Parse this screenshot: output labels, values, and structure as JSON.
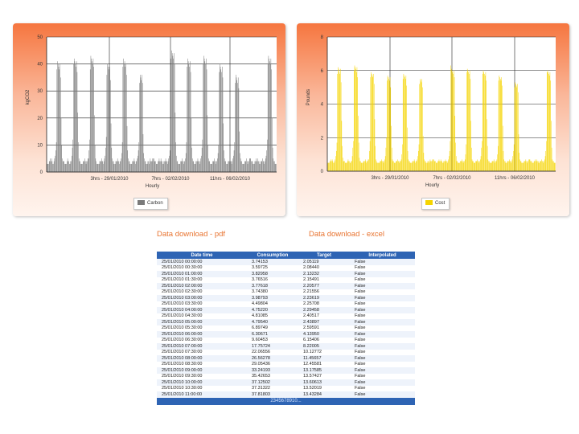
{
  "charts": [
    {
      "name": "carbon",
      "ylabel": "kgCO2",
      "xlabel": "Hourly",
      "color": "#7a7a7a",
      "legend_label": "Carbon",
      "x_ticks": [
        "3hrs - 29/01/2010",
        "7hrs - 02/02/2010",
        "11hrs - 06/02/2010"
      ],
      "y_ticks": [
        "0",
        "10",
        "20",
        "30",
        "40",
        "50"
      ]
    },
    {
      "name": "cost",
      "ylabel": "Pounds",
      "xlabel": "Hourly",
      "color": "#f5d400",
      "legend_label": "Cost",
      "x_ticks": [
        "3hrs - 29/01/2010",
        "7hrs - 02/02/2010",
        "11hrs - 06/02/2010"
      ],
      "y_ticks": [
        "0",
        "2",
        "4",
        "6",
        "8"
      ]
    }
  ],
  "chart_data": [
    {
      "type": "bar",
      "xlabel": "Hourly",
      "ylabel": "kgCO2",
      "ylim": [
        0,
        50
      ],
      "x_range": [
        "25/01/2010",
        "07/02/2010"
      ],
      "series": [
        {
          "name": "Carbon",
          "values": [
            3,
            3,
            3,
            3,
            4,
            4,
            5,
            4,
            5,
            4,
            3,
            3,
            4,
            5,
            6,
            8,
            11,
            38,
            41,
            40,
            39,
            38,
            40,
            35,
            20,
            10,
            5,
            4,
            4,
            4,
            3,
            3,
            3,
            3,
            4,
            5,
            4,
            4,
            3,
            3,
            4,
            4,
            6,
            9,
            12,
            40,
            42,
            41,
            40,
            39,
            41,
            37,
            22,
            11,
            5,
            4,
            4,
            3,
            3,
            3,
            3,
            4,
            4,
            4,
            5,
            4,
            3,
            4,
            4,
            5,
            5,
            8,
            12,
            38,
            43,
            42,
            41,
            40,
            42,
            39,
            21,
            10,
            5,
            4,
            3,
            3,
            3,
            3,
            3,
            4,
            4,
            4,
            5,
            4,
            4,
            3,
            4,
            5,
            6,
            9,
            13,
            36,
            40,
            39,
            38,
            37,
            39,
            34,
            18,
            9,
            5,
            4,
            4,
            3,
            3,
            3,
            4,
            4,
            4,
            5,
            4,
            4,
            3,
            4,
            4,
            5,
            7,
            11,
            39,
            42,
            40,
            41,
            39,
            40,
            36,
            17,
            8,
            5,
            4,
            4,
            3,
            3,
            3,
            3,
            4,
            4,
            4,
            5,
            4,
            3,
            4,
            4,
            5,
            6,
            8,
            11,
            33,
            36,
            35,
            34,
            36,
            33,
            14,
            7,
            5,
            4,
            4,
            3,
            3,
            3,
            4,
            4,
            3,
            4,
            5,
            4,
            4,
            4,
            5,
            5,
            5,
            4,
            4,
            4,
            3,
            3,
            3,
            4,
            4,
            5,
            4,
            4,
            5,
            4,
            4,
            3,
            3,
            4,
            4,
            4,
            5,
            4,
            4,
            3,
            4,
            5,
            6,
            8,
            12,
            42,
            45,
            44,
            43,
            42,
            44,
            40,
            22,
            11,
            6,
            4,
            4,
            3,
            3,
            3,
            3,
            4,
            4,
            4,
            5,
            4,
            3,
            4,
            4,
            5,
            7,
            11,
            39,
            42,
            41,
            40,
            39,
            41,
            37,
            20,
            9,
            5,
            4,
            4,
            3,
            3,
            3,
            4,
            4,
            4,
            5,
            4,
            4,
            3,
            4,
            5,
            6,
            9,
            12,
            40,
            43,
            42,
            41,
            40,
            42,
            38,
            21,
            10,
            5,
            4,
            4,
            3,
            3,
            3,
            3,
            4,
            4,
            4,
            5,
            4,
            3,
            4,
            4,
            5,
            7,
            10,
            37,
            40,
            39,
            38,
            37,
            39,
            35,
            18,
            8,
            5,
            4,
            4,
            3,
            3,
            3,
            4,
            4,
            4,
            5,
            4,
            4,
            3,
            4,
            5,
            6,
            8,
            11,
            33,
            36,
            35,
            34,
            33,
            35,
            31,
            15,
            7,
            5,
            4,
            4,
            3,
            3,
            3,
            3,
            4,
            4,
            4,
            5,
            4,
            3,
            4,
            4,
            5,
            5,
            5,
            4,
            4,
            4,
            3,
            3,
            3,
            4,
            4,
            5,
            4,
            4,
            5,
            4,
            4,
            3,
            3,
            4,
            4,
            4,
            5,
            4,
            4,
            3,
            4,
            5,
            6,
            8,
            12,
            40,
            43,
            42,
            41,
            40,
            42,
            38,
            20,
            9,
            5,
            4,
            4,
            3,
            3,
            3
          ]
        }
      ]
    },
    {
      "type": "bar",
      "xlabel": "Hourly",
      "ylabel": "Pounds",
      "ylim": [
        0,
        8
      ],
      "x_range": [
        "25/01/2010",
        "07/02/2010"
      ],
      "series": [
        {
          "name": "Cost",
          "values": [
            0.5,
            0.5,
            0.5,
            0.5,
            0.6,
            0.6,
            0.7,
            0.6,
            0.7,
            0.6,
            0.5,
            0.5,
            0.6,
            0.7,
            0.9,
            1.2,
            1.7,
            5.8,
            6.2,
            6.1,
            5.9,
            5.8,
            6.1,
            5.3,
            3.0,
            1.5,
            0.8,
            0.6,
            0.6,
            0.6,
            0.5,
            0.5,
            0.5,
            0.5,
            0.6,
            0.7,
            0.6,
            0.6,
            0.5,
            0.5,
            0.6,
            0.6,
            0.9,
            1.4,
            1.8,
            6.0,
            6.3,
            6.2,
            6.1,
            5.9,
            6.2,
            5.6,
            3.3,
            1.7,
            0.8,
            0.6,
            0.6,
            0.5,
            0.5,
            0.5,
            0.5,
            0.6,
            0.6,
            0.6,
            0.7,
            0.6,
            0.5,
            0.6,
            0.6,
            0.7,
            0.7,
            1.2,
            1.8,
            5.6,
            5.9,
            5.8,
            5.7,
            5.6,
            5.8,
            5.2,
            3.1,
            1.5,
            0.7,
            0.6,
            0.5,
            0.5,
            0.5,
            0.5,
            0.5,
            0.6,
            0.6,
            0.6,
            0.7,
            0.6,
            0.6,
            0.5,
            0.6,
            0.7,
            0.9,
            1.4,
            2.0,
            5.4,
            5.7,
            5.6,
            5.5,
            5.4,
            5.6,
            5.0,
            2.7,
            1.4,
            0.7,
            0.6,
            0.6,
            0.5,
            0.5,
            0.5,
            0.6,
            0.6,
            0.6,
            0.7,
            0.6,
            0.6,
            0.5,
            0.6,
            0.6,
            0.7,
            1.0,
            1.6,
            5.5,
            5.8,
            5.7,
            5.6,
            5.5,
            5.7,
            5.1,
            2.6,
            1.2,
            0.7,
            0.6,
            0.6,
            0.5,
            0.5,
            0.5,
            0.5,
            0.6,
            0.6,
            0.6,
            0.7,
            0.6,
            0.5,
            0.6,
            0.6,
            0.7,
            0.9,
            1.2,
            1.6,
            5.2,
            5.5,
            5.4,
            5.3,
            5.5,
            5.0,
            2.1,
            1.1,
            0.7,
            0.6,
            0.6,
            0.5,
            0.5,
            0.5,
            0.6,
            0.6,
            0.5,
            0.6,
            0.7,
            0.6,
            0.6,
            0.6,
            0.7,
            0.7,
            0.7,
            0.6,
            0.6,
            0.6,
            0.5,
            0.5,
            0.5,
            0.6,
            0.6,
            0.7,
            0.6,
            0.6,
            0.7,
            0.6,
            0.6,
            0.5,
            0.5,
            0.6,
            0.6,
            0.6,
            0.7,
            0.6,
            0.6,
            0.5,
            0.6,
            0.7,
            0.9,
            1.2,
            1.8,
            6.3,
            6.1,
            6.0,
            5.9,
            5.8,
            6.0,
            5.6,
            3.3,
            1.7,
            0.9,
            0.6,
            0.6,
            0.5,
            0.5,
            0.5,
            0.5,
            0.6,
            0.6,
            0.6,
            0.7,
            0.6,
            0.5,
            0.6,
            0.6,
            0.7,
            1.0,
            1.6,
            5.9,
            6.1,
            6.0,
            5.9,
            5.8,
            6.0,
            5.5,
            3.0,
            1.4,
            0.7,
            0.6,
            0.6,
            0.5,
            0.5,
            0.5,
            0.6,
            0.6,
            0.6,
            0.7,
            0.6,
            0.6,
            0.5,
            0.6,
            0.7,
            0.9,
            1.4,
            1.8,
            5.8,
            6.0,
            5.9,
            5.8,
            5.7,
            5.9,
            5.4,
            3.1,
            1.5,
            0.7,
            0.6,
            0.6,
            0.5,
            0.5,
            0.5,
            0.5,
            0.6,
            0.6,
            0.6,
            0.7,
            0.6,
            0.5,
            0.6,
            0.6,
            0.7,
            1.0,
            1.5,
            5.4,
            5.7,
            5.6,
            5.5,
            5.4,
            5.6,
            5.1,
            2.7,
            1.2,
            0.7,
            0.6,
            0.6,
            0.5,
            0.5,
            0.5,
            0.6,
            0.6,
            0.6,
            0.7,
            0.6,
            0.6,
            0.5,
            0.6,
            0.7,
            0.9,
            1.2,
            1.6,
            5.0,
            5.3,
            5.2,
            5.1,
            5.0,
            5.2,
            4.7,
            2.2,
            1.1,
            0.7,
            0.6,
            0.6,
            0.5,
            0.5,
            0.5,
            0.5,
            0.6,
            0.6,
            0.6,
            0.7,
            0.6,
            0.5,
            0.6,
            0.6,
            0.7,
            0.7,
            0.7,
            0.6,
            0.6,
            0.6,
            0.5,
            0.5,
            0.5,
            0.6,
            0.6,
            0.7,
            0.6,
            0.6,
            0.7,
            0.6,
            0.6,
            0.5,
            0.5,
            0.6,
            0.6,
            0.6,
            0.7,
            0.6,
            0.6,
            0.5,
            0.6,
            0.7,
            0.9,
            1.2,
            1.8,
            5.9,
            6.0,
            5.9,
            5.8,
            5.7,
            5.9,
            5.4,
            3.0,
            1.4,
            0.7,
            0.6,
            0.6,
            0.5,
            0.5,
            0.5
          ]
        }
      ]
    },
    {
      "type": "table",
      "columns": [
        "Date time",
        "Consumption",
        "Target",
        "Interpolated"
      ],
      "rows": [
        [
          "25/01/2010 00:00:00",
          "3.74153",
          "2.05119",
          "False"
        ],
        [
          "25/01/2010 00:30:00",
          "3.59725",
          "2.08440",
          "False"
        ],
        [
          "25/01/2010 01:00:00",
          "3.82958",
          "2.13232",
          "False"
        ],
        [
          "25/01/2010 01:30:00",
          "3.76516",
          "2.15491",
          "False"
        ],
        [
          "25/01/2010 02:00:00",
          "3.77618",
          "2.20577",
          "False"
        ],
        [
          "25/01/2010 02:30:00",
          "3.74380",
          "2.21556",
          "False"
        ],
        [
          "25/01/2010 03:00:00",
          "3.98793",
          "2.23619",
          "False"
        ],
        [
          "25/01/2010 03:30:00",
          "4.49804",
          "2.25708",
          "False"
        ],
        [
          "25/01/2010 04:00:00",
          "4.75220",
          "2.29458",
          "False"
        ],
        [
          "25/01/2010 04:30:00",
          "4.81085",
          "2.40517",
          "False"
        ],
        [
          "25/01/2010 05:00:00",
          "4.79540",
          "2.43897",
          "False"
        ],
        [
          "25/01/2010 05:30:00",
          "6.89749",
          "2.59591",
          "False"
        ],
        [
          "25/01/2010 06:00:00",
          "6.30671",
          "4.13950",
          "False"
        ],
        [
          "25/01/2010 06:30:00",
          "9.60453",
          "6.15406",
          "False"
        ],
        [
          "25/01/2010 07:00:00",
          "17.75724",
          "8.22005",
          "False"
        ],
        [
          "25/01/2010 07:30:00",
          "22.06556",
          "10.12772",
          "False"
        ],
        [
          "25/01/2010 08:00:00",
          "26.56278",
          "11.45657",
          "False"
        ],
        [
          "25/01/2010 08:30:00",
          "29.05436",
          "12.45581",
          "False"
        ],
        [
          "25/01/2010 09:00:00",
          "33.24193",
          "13.17585",
          "False"
        ],
        [
          "25/01/2010 09:30:00",
          "35.42653",
          "13.57427",
          "False"
        ],
        [
          "25/01/2010 10:00:00",
          "37.12502",
          "13.60613",
          "False"
        ],
        [
          "25/01/2010 10:30:00",
          "37.31322",
          "13.52019",
          "False"
        ],
        [
          "25/01/2010 11:00:00",
          "37.81803",
          "13.43284",
          "False"
        ]
      ]
    }
  ],
  "links": {
    "pdf": "Data download - pdf",
    "excel": "Data download - excel"
  },
  "table": {
    "headers": [
      "Date time",
      "Consumption",
      "Target",
      "Interpolated"
    ],
    "pager": "2345678910..."
  }
}
